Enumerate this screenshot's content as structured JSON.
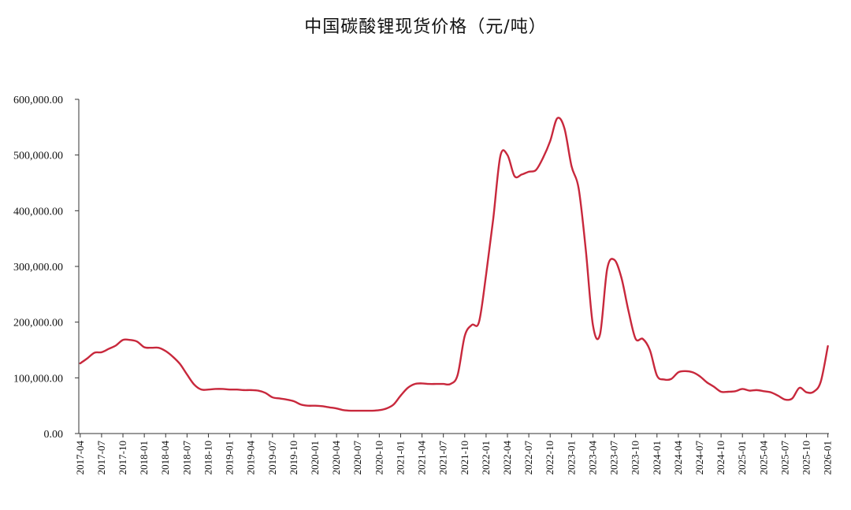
{
  "chart_data": {
    "type": "line",
    "title": "中国碳酸锂现货价格（元/吨）",
    "xlabel": "",
    "ylabel": "",
    "ylim": [
      0,
      600000
    ],
    "yticks": [
      "0.00",
      "100,000.00",
      "200,000.00",
      "300,000.00",
      "400,000.00",
      "500,000.00",
      "600,000.00"
    ],
    "xticks": [
      "2017-04",
      "2017-07",
      "2017-10",
      "2018-01",
      "2018-04",
      "2018-07",
      "2018-10",
      "2019-01",
      "2019-04",
      "2019-07",
      "2019-10",
      "2020-01",
      "2020-04",
      "2020-07",
      "2020-10",
      "2021-01",
      "2021-04",
      "2021-07",
      "2021-10",
      "2022-01",
      "2022-04",
      "2022-07",
      "2022-10",
      "2023-01",
      "2023-04",
      "2023-07",
      "2023-10",
      "2024-01",
      "2024-04",
      "2024-07",
      "2024-10",
      "2025-01",
      "2025-04",
      "2025-07",
      "2025-10",
      "2026-01"
    ],
    "grid": false,
    "line_color": "#c8283c",
    "series": [
      {
        "x": [
          "2017-04",
          "2017-05",
          "2017-06",
          "2017-07",
          "2017-08",
          "2017-09",
          "2017-10",
          "2017-11",
          "2017-12",
          "2018-01",
          "2018-02",
          "2018-03",
          "2018-04",
          "2018-05",
          "2018-06",
          "2018-07",
          "2018-08",
          "2018-09",
          "2018-10",
          "2018-11",
          "2018-12",
          "2019-01",
          "2019-02",
          "2019-03",
          "2019-04",
          "2019-05",
          "2019-06",
          "2019-07",
          "2019-08",
          "2019-09",
          "2019-10",
          "2019-11",
          "2019-12",
          "2020-01",
          "2020-02",
          "2020-03",
          "2020-04",
          "2020-05",
          "2020-06",
          "2020-07",
          "2020-08",
          "2020-09",
          "2020-10",
          "2020-11",
          "2020-12",
          "2021-01",
          "2021-02",
          "2021-03",
          "2021-04",
          "2021-05",
          "2021-06",
          "2021-07",
          "2021-08",
          "2021-09",
          "2021-10",
          "2021-11",
          "2021-12",
          "2022-01",
          "2022-02",
          "2022-03",
          "2022-04",
          "2022-05",
          "2022-06",
          "2022-07",
          "2022-08",
          "2022-09",
          "2022-10",
          "2022-11",
          "2022-12",
          "2023-01",
          "2023-02",
          "2023-03",
          "2023-04",
          "2023-05",
          "2023-06",
          "2023-07",
          "2023-08",
          "2023-09",
          "2023-10",
          "2023-11",
          "2023-12",
          "2024-01",
          "2024-02",
          "2024-03",
          "2024-04",
          "2024-05",
          "2024-06",
          "2024-07",
          "2024-08",
          "2024-09",
          "2024-10",
          "2024-11",
          "2024-12",
          "2025-01",
          "2025-02",
          "2025-03",
          "2025-04",
          "2025-05",
          "2025-06",
          "2025-07",
          "2025-08",
          "2025-09",
          "2025-10",
          "2025-11",
          "2025-12",
          "2026-01"
        ],
        "values": [
          126000,
          135000,
          145000,
          146000,
          152000,
          158000,
          168000,
          168000,
          165000,
          155000,
          154000,
          154000,
          148000,
          138000,
          125000,
          106000,
          88000,
          79000,
          79000,
          80000,
          80000,
          79000,
          79000,
          78000,
          78000,
          77000,
          73000,
          65000,
          63000,
          61000,
          58000,
          52000,
          50000,
          50000,
          49000,
          47000,
          45000,
          42000,
          41000,
          41000,
          41000,
          41000,
          42000,
          45000,
          52000,
          68000,
          82000,
          89000,
          90000,
          89000,
          89000,
          89000,
          89000,
          105000,
          175000,
          195000,
          200000,
          285000,
          385000,
          498000,
          500000,
          462000,
          465000,
          470000,
          473000,
          495000,
          525000,
          566000,
          548000,
          480000,
          440000,
          330000,
          195000,
          178000,
          295000,
          312000,
          280000,
          220000,
          170000,
          170000,
          150000,
          104000,
          97000,
          98000,
          110000,
          112000,
          110000,
          103000,
          92000,
          84000,
          75000,
          75000,
          76000,
          80000,
          77000,
          78000,
          76000,
          74000,
          68000,
          61000,
          63000,
          82000,
          74000,
          75000,
          93000,
          157000
        ]
      }
    ]
  }
}
